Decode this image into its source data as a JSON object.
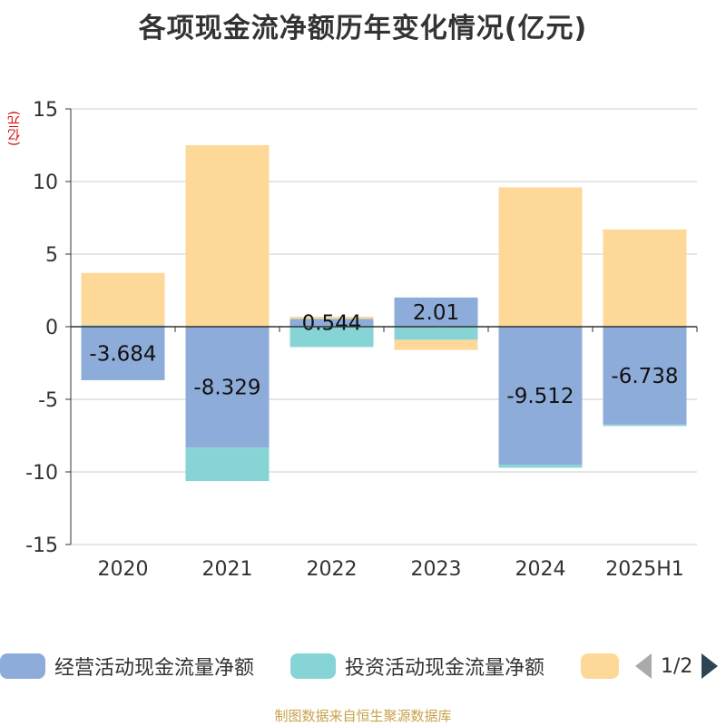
{
  "title": "各项现金流净额历年变化情况(亿元)",
  "unit_label": "(亿元)",
  "source": "制图数据来自恒生聚源数据库",
  "pager": {
    "text": "1/2"
  },
  "colors": {
    "operating": "#8eacd9",
    "investing": "#86d4d6",
    "financing": "#fdd899"
  },
  "chart_data": {
    "type": "bar",
    "stacked": true,
    "categories": [
      "2020",
      "2021",
      "2022",
      "2023",
      "2024",
      "2025H1"
    ],
    "ylim": [
      -15,
      15
    ],
    "yticks": [
      15,
      10,
      5,
      0,
      -5,
      -10,
      -15
    ],
    "grid": true,
    "legend_position": "bottom",
    "series": [
      {
        "name": "经营活动现金流量净额",
        "values": [
          -3.684,
          -8.329,
          0.544,
          2.01,
          -9.512,
          -6.738
        ],
        "show_labels": true
      },
      {
        "name": "投资活动现金流量净额",
        "values": [
          0.1,
          -2.3,
          -1.4,
          -0.9,
          -0.2,
          -0.1
        ],
        "show_labels": false
      },
      {
        "name": "",
        "values": [
          3.6,
          12.5,
          0.15,
          -0.7,
          9.6,
          6.7
        ],
        "show_labels": false
      }
    ]
  }
}
